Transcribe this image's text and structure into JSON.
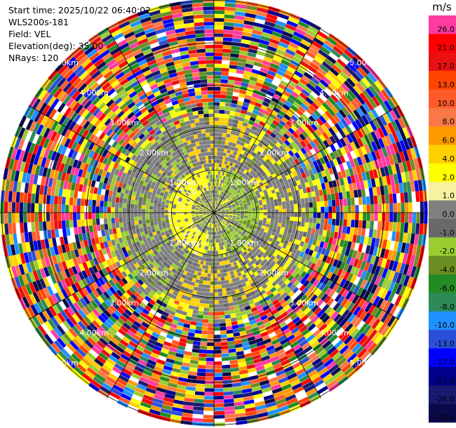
{
  "header": {
    "start_time": "Start time: 2025/10/22 06:40:02",
    "instrument": "WLS200s-181",
    "field": "Field: VEL",
    "elevation": "Elevation(deg): 35.00",
    "nrays": "NRays: 120"
  },
  "chart_data": {
    "type": "heatmap",
    "subtype": "polar-ppi",
    "field": "VEL",
    "nrays": 120,
    "range_rings_km": [
      "1.00km",
      "2.00km",
      "3.00km",
      "4.00km",
      "5.00km"
    ],
    "colorbar": {
      "unit": "m/s",
      "levels": [
        {
          "label": "26.0",
          "color": "#ff3aa0"
        },
        {
          "label": "21.0",
          "color": "#ff0000"
        },
        {
          "label": "17.0",
          "color": "#e81010"
        },
        {
          "label": "13.0",
          "color": "#ff4500"
        },
        {
          "label": "10.0",
          "color": "#ff5a2a"
        },
        {
          "label": "8.0",
          "color": "#fa7846"
        },
        {
          "label": "6.0",
          "color": "#ff9900"
        },
        {
          "label": "4.0",
          "color": "#ffd000"
        },
        {
          "label": "2.0",
          "color": "#ffff00"
        },
        {
          "label": "1.0",
          "color": "#f6f2a0"
        },
        {
          "label": "0.0",
          "color": "#7f7f7f"
        },
        {
          "label": "-1.0",
          "color": "#696969"
        },
        {
          "label": "-2.0",
          "color": "#9acd32"
        },
        {
          "label": "-4.0",
          "color": "#6b8e23"
        },
        {
          "label": "-6.0",
          "color": "#228b22"
        },
        {
          "label": "-8.0",
          "color": "#2e8b57"
        },
        {
          "label": "-10.0",
          "color": "#1e90ff"
        },
        {
          "label": "-13.0",
          "color": "#2b4fd8"
        },
        {
          "label": "-17.0",
          "color": "#0000ff"
        },
        {
          "label": "-21.0",
          "color": "#00008b"
        },
        {
          "label": "-26.0",
          "color": "#191970"
        },
        {
          "label": "-30.0",
          "color": "#0a0a4a"
        }
      ]
    }
  }
}
